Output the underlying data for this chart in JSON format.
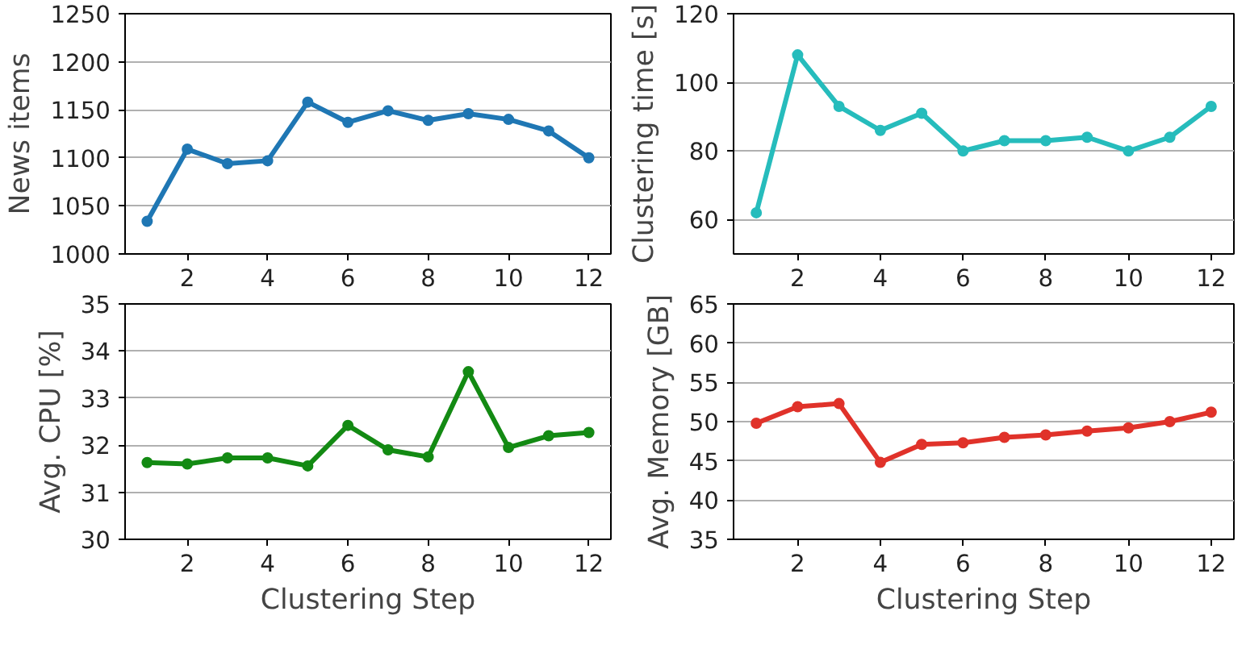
{
  "chart_data": [
    {
      "type": "line",
      "ylabel": "News items",
      "x": [
        1,
        2,
        3,
        4,
        5,
        6,
        7,
        8,
        9,
        10,
        11,
        12
      ],
      "xlim": [
        0.45,
        12.55
      ],
      "xticks": [
        2,
        4,
        6,
        8,
        10,
        12
      ],
      "ylim": [
        1000,
        1250
      ],
      "yticks": [
        1000,
        1050,
        1100,
        1150,
        1200,
        1250
      ],
      "grid": "y",
      "marker": "circle",
      "line_style": "solid",
      "series": [
        {
          "color": "#1f77b4",
          "values": [
            1034,
            1109,
            1094,
            1097,
            1158,
            1137,
            1149,
            1139,
            1146,
            1140,
            1128,
            1100
          ]
        }
      ]
    },
    {
      "type": "line",
      "ylabel": "Clustering time [s]",
      "x": [
        1,
        2,
        3,
        4,
        5,
        6,
        7,
        8,
        9,
        10,
        11,
        12
      ],
      "xlim": [
        0.45,
        12.55
      ],
      "xticks": [
        2,
        4,
        6,
        8,
        10,
        12
      ],
      "ylim": [
        50,
        120
      ],
      "yticks": [
        60,
        80,
        100,
        120
      ],
      "grid": "y",
      "marker": "circle",
      "line_style": "solid",
      "series": [
        {
          "color": "#26bcbc",
          "values": [
            62,
            108,
            93,
            86,
            91,
            80,
            83,
            83,
            84,
            80,
            84,
            93
          ]
        }
      ]
    },
    {
      "type": "line",
      "xlabel": "Clustering Step",
      "ylabel": "Avg. CPU [%]",
      "x": [
        1,
        2,
        3,
        4,
        5,
        6,
        7,
        8,
        9,
        10,
        11,
        12
      ],
      "xlim": [
        0.45,
        12.55
      ],
      "xticks": [
        2,
        4,
        6,
        8,
        10,
        12
      ],
      "ylim": [
        30,
        35
      ],
      "yticks": [
        30,
        31,
        32,
        33,
        34,
        35
      ],
      "grid": "y",
      "marker": "circle",
      "line_style": "solid",
      "series": [
        {
          "color": "#138a13",
          "values": [
            31.63,
            31.6,
            31.73,
            31.73,
            31.56,
            32.42,
            31.9,
            31.75,
            33.56,
            31.95,
            32.2,
            32.27
          ]
        }
      ]
    },
    {
      "type": "line",
      "xlabel": "Clustering Step",
      "ylabel": "Avg. Memory [GB]",
      "x": [
        1,
        2,
        3,
        4,
        5,
        6,
        7,
        8,
        9,
        10,
        11,
        12
      ],
      "xlim": [
        0.45,
        12.55
      ],
      "xticks": [
        2,
        4,
        6,
        8,
        10,
        12
      ],
      "ylim": [
        35,
        65
      ],
      "yticks": [
        35,
        40,
        45,
        50,
        55,
        60,
        65
      ],
      "grid": "y",
      "marker": "circle",
      "line_style": "solid",
      "series": [
        {
          "color": "#e0322a",
          "values": [
            49.8,
            51.9,
            52.3,
            44.8,
            47.1,
            47.3,
            48.0,
            48.3,
            48.8,
            49.2,
            50.0,
            51.2
          ]
        }
      ]
    }
  ]
}
